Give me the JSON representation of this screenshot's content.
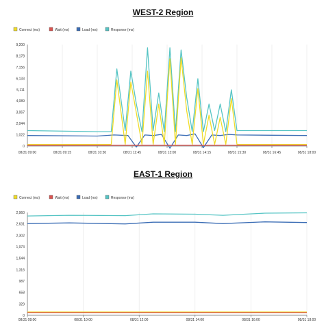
{
  "chart_data": [
    {
      "type": "line",
      "title": "WEST-2 Region",
      "ylim": [
        0,
        9200
      ],
      "yticks": [
        "9,200",
        "8,178",
        "7,156",
        "6,133",
        "5,111",
        "4,089",
        "3,067",
        "2,044",
        "1,022",
        "0"
      ],
      "xticks": [
        "08/31 09:00",
        "08/31 09:15",
        "08/31 10:30",
        "08/31 11:45",
        "08/31 13:00",
        "08/31 14:15",
        "08/31 15:30",
        "08/31 16:45",
        "08/31 18:00"
      ],
      "legend_position": "top-left",
      "grid": "vertical",
      "series": [
        {
          "name": "Connect (ms)",
          "color": "#f0dc28",
          "x": [
            0,
            25,
            30,
            32,
            35,
            37,
            39,
            41,
            43,
            45,
            47,
            49,
            51,
            53,
            55,
            57,
            59,
            61,
            63,
            65,
            67,
            69,
            71,
            73,
            75,
            100
          ],
          "values": [
            150,
            150,
            150,
            6000,
            150,
            5800,
            3000,
            150,
            6800,
            150,
            3800,
            150,
            7900,
            150,
            8000,
            3200,
            150,
            5200,
            150,
            2800,
            150,
            2600,
            150,
            4300,
            150,
            150
          ]
        },
        {
          "name": "Wait (ms)",
          "color": "#d9534f",
          "x": [
            0,
            100
          ],
          "values": [
            60,
            60
          ]
        },
        {
          "name": "Load (ms)",
          "color": "#3b6db5",
          "x": [
            0,
            25,
            31,
            36,
            39,
            42,
            45,
            48,
            51,
            54,
            57,
            60,
            63,
            66,
            69,
            72,
            75,
            100
          ],
          "values": [
            950,
            900,
            1000,
            950,
            -100,
            1000,
            950,
            1050,
            -200,
            1000,
            950,
            1100,
            -150,
            1000,
            950,
            1050,
            1000,
            950
          ]
        },
        {
          "name": "Response (ms)",
          "color": "#55c4c4",
          "x": [
            0,
            25,
            30,
            32,
            35,
            37,
            39,
            41,
            43,
            45,
            47,
            49,
            51,
            53,
            55,
            57,
            59,
            61,
            63,
            65,
            67,
            69,
            71,
            73,
            75,
            100
          ],
          "values": [
            1400,
            1300,
            1300,
            7000,
            1400,
            6800,
            3800,
            1300,
            8900,
            1400,
            4800,
            1300,
            8900,
            1300,
            8700,
            4400,
            1300,
            6100,
            1300,
            3800,
            1400,
            3800,
            1300,
            5100,
            1400,
            1400
          ]
        }
      ]
    },
    {
      "type": "line",
      "title": "EAST-1  Region",
      "ylim": [
        0,
        2960
      ],
      "yticks": [
        "2,960",
        "2,631",
        "2,302",
        "1,973",
        "1,644",
        "1,316",
        "987",
        "658",
        "329",
        "0"
      ],
      "xticks": [
        "08/31 08:00",
        "08/31 10:00",
        "08/31 12:00",
        "08/31 14:00",
        "08/31 16:00",
        "08/31 18:00"
      ],
      "legend_position": "top-left",
      "grid": "vertical",
      "series": [
        {
          "name": "Connect (ms)",
          "color": "#f0dc28",
          "x": [
            0,
            100
          ],
          "values": [
            95,
            95
          ]
        },
        {
          "name": "Wait (ms)",
          "color": "#d9534f",
          "x": [
            0,
            100
          ],
          "values": [
            75,
            75
          ]
        },
        {
          "name": "Load (ms)",
          "color": "#3b6db5",
          "x": [
            0,
            15,
            35,
            45,
            60,
            70,
            85,
            100
          ],
          "values": [
            2640,
            2660,
            2630,
            2680,
            2680,
            2640,
            2690,
            2670
          ]
        },
        {
          "name": "Response (ms)",
          "color": "#55c4c4",
          "x": [
            0,
            15,
            35,
            45,
            60,
            70,
            85,
            100
          ],
          "values": [
            2860,
            2880,
            2870,
            2920,
            2910,
            2880,
            2940,
            2950
          ]
        }
      ]
    }
  ]
}
